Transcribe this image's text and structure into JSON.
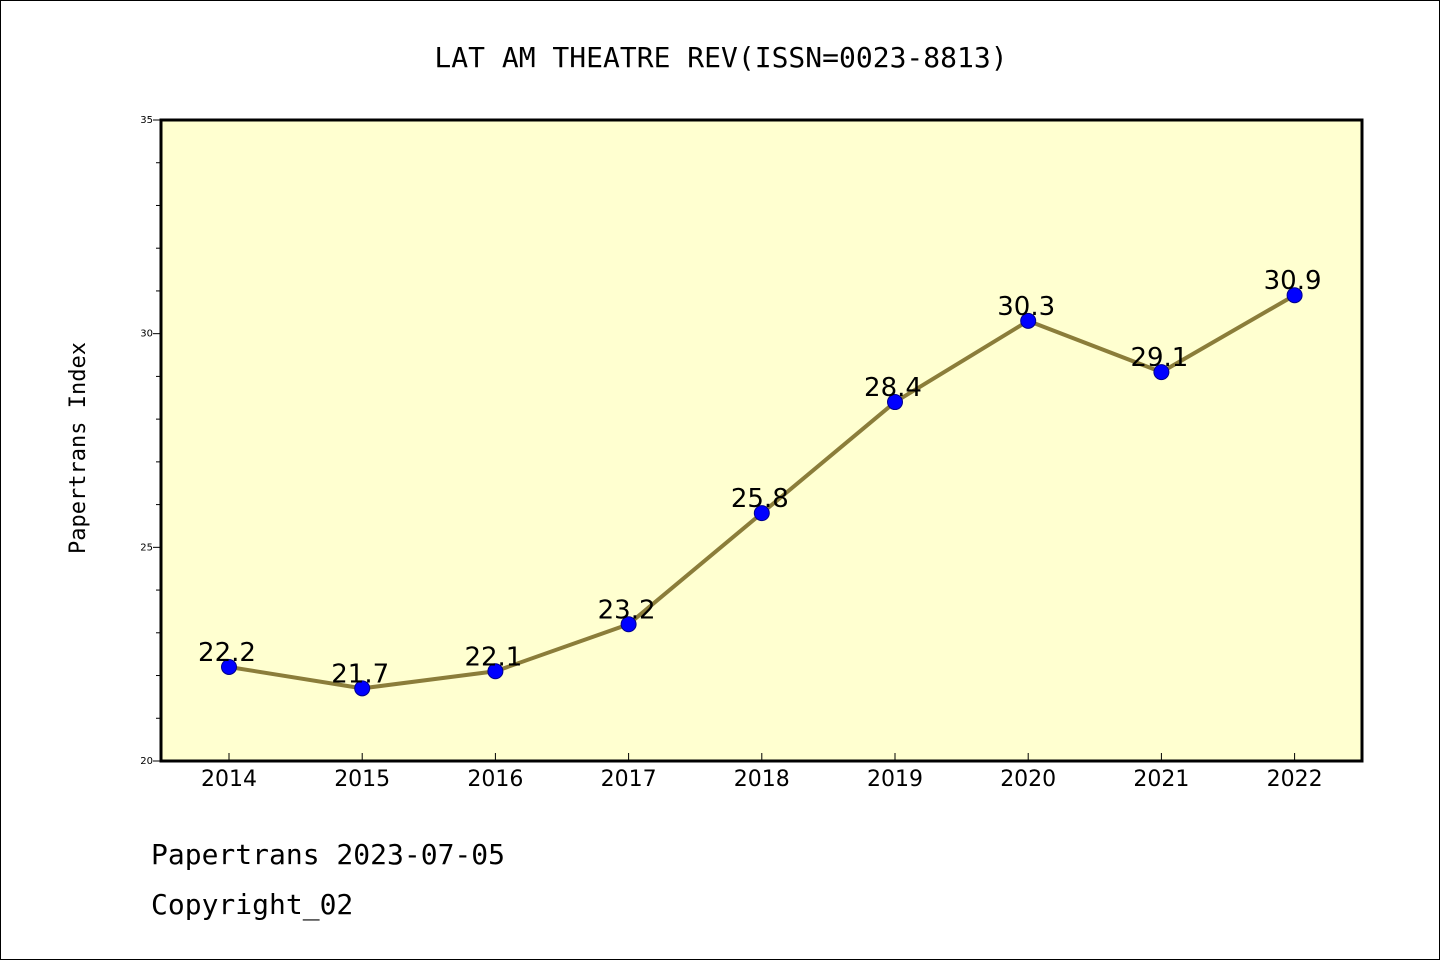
{
  "chart_data": {
    "type": "line",
    "title": "LAT AM THEATRE REV(ISSN=0023-8813)",
    "xlabel": "",
    "ylabel": "Papertrans Index",
    "categories": [
      "2014",
      "2015",
      "2016",
      "2017",
      "2018",
      "2019",
      "2020",
      "2021",
      "2022"
    ],
    "series": [
      {
        "values": [
          22.2,
          21.7,
          22.1,
          23.2,
          25.8,
          28.4,
          30.3,
          29.1,
          30.9
        ],
        "labels": [
          "22.2",
          "21.7",
          "22.1",
          "23.2",
          "25.8",
          "28.4",
          "30.3",
          "29.1",
          "30.9"
        ]
      }
    ],
    "ylim": [
      20,
      35
    ],
    "yticks": [
      "20",
      "25",
      "30",
      "35"
    ],
    "grid": false,
    "colors": {
      "line": "#8b7d3a",
      "marker": "#0000ff",
      "plot_background": "#ffffd0"
    }
  },
  "footer": {
    "line1": "Papertrans 2023-07-05",
    "line2": "Copyright_02"
  }
}
